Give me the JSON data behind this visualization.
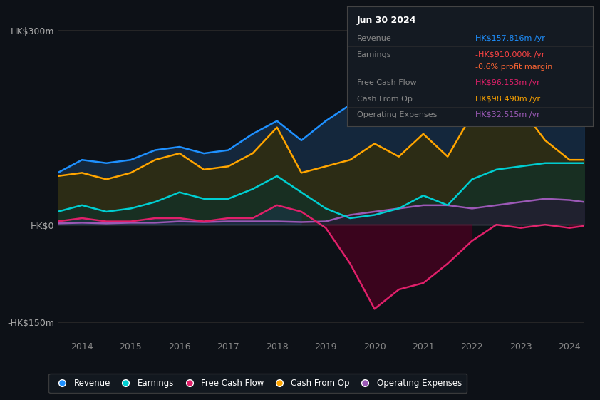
{
  "background_color": "#0d1117",
  "plot_bg_color": "#0d1117",
  "years": [
    2013.5,
    2014,
    2014.5,
    2015,
    2015.5,
    2016,
    2016.5,
    2017,
    2017.5,
    2018,
    2018.5,
    2019,
    2019.5,
    2020,
    2020.5,
    2021,
    2021.5,
    2022,
    2022.5,
    2023,
    2023.5,
    2024,
    2024.3
  ],
  "revenue": [
    80,
    100,
    95,
    100,
    115,
    120,
    110,
    115,
    140,
    160,
    130,
    160,
    185,
    210,
    235,
    290,
    310,
    270,
    225,
    210,
    210,
    175,
    160
  ],
  "cash_from_op": [
    75,
    80,
    70,
    80,
    100,
    110,
    85,
    90,
    110,
    150,
    80,
    90,
    100,
    125,
    105,
    140,
    105,
    170,
    220,
    180,
    130,
    100,
    100
  ],
  "earnings": [
    5,
    10,
    5,
    5,
    10,
    10,
    5,
    10,
    10,
    30,
    20,
    -5,
    -60,
    -130,
    -100,
    -90,
    -60,
    -25,
    0,
    -5,
    0,
    -5,
    -2
  ],
  "free_cash_flow": [
    20,
    30,
    20,
    25,
    35,
    50,
    40,
    40,
    55,
    75,
    50,
    25,
    10,
    15,
    25,
    45,
    30,
    70,
    85,
    90,
    95,
    95,
    95
  ],
  "operating_exp": [
    2,
    3,
    2,
    3,
    3,
    5,
    4,
    5,
    5,
    5,
    4,
    5,
    15,
    20,
    25,
    30,
    30,
    25,
    30,
    35,
    40,
    38,
    35
  ],
  "colors": {
    "revenue": "#1e90ff",
    "cash_from_op": "#ffa500",
    "earnings": "#e0206a",
    "free_cash_flow": "#00ced1",
    "operating_exp": "#9b59b6",
    "revenue_fill": "#1a3a5c",
    "cash_from_op_fill": "#3a3000",
    "earnings_fill_neg": "#4a0020",
    "free_cash_flow_fill": "#003333",
    "operating_exp_fill": "#2a1040"
  },
  "ylim": [
    -175,
    330
  ],
  "yticks": [
    -150,
    0,
    300
  ],
  "ytick_labels": [
    "-HK$150m",
    "HK$0",
    "HK$300m"
  ],
  "xticks": [
    2014,
    2015,
    2016,
    2017,
    2018,
    2019,
    2020,
    2021,
    2022,
    2023,
    2024
  ],
  "info_box": {
    "bg_color": "#141a22",
    "border_color": "#444444",
    "title": "Jun 30 2024",
    "rows": [
      {
        "label": "Revenue",
        "value": "HK$157.816m /yr",
        "value_color": "#1e90ff"
      },
      {
        "label": "Earnings",
        "value": "-HK$910.000k /yr",
        "value_color": "#ff4444"
      },
      {
        "label": "",
        "value": "-0.6% profit margin",
        "value_color": "#ff6633"
      },
      {
        "label": "Free Cash Flow",
        "value": "HK$96.153m /yr",
        "value_color": "#e0206a"
      },
      {
        "label": "Cash From Op",
        "value": "HK$98.490m /yr",
        "value_color": "#ffa500"
      },
      {
        "label": "Operating Expenses",
        "value": "HK$32.515m /yr",
        "value_color": "#9b59b6"
      }
    ]
  },
  "legend": [
    {
      "label": "Revenue",
      "color": "#1e90ff"
    },
    {
      "label": "Earnings",
      "color": "#00ced1"
    },
    {
      "label": "Free Cash Flow",
      "color": "#e0206a"
    },
    {
      "label": "Cash From Op",
      "color": "#ffa500"
    },
    {
      "label": "Operating Expenses",
      "color": "#9b59b6"
    }
  ]
}
